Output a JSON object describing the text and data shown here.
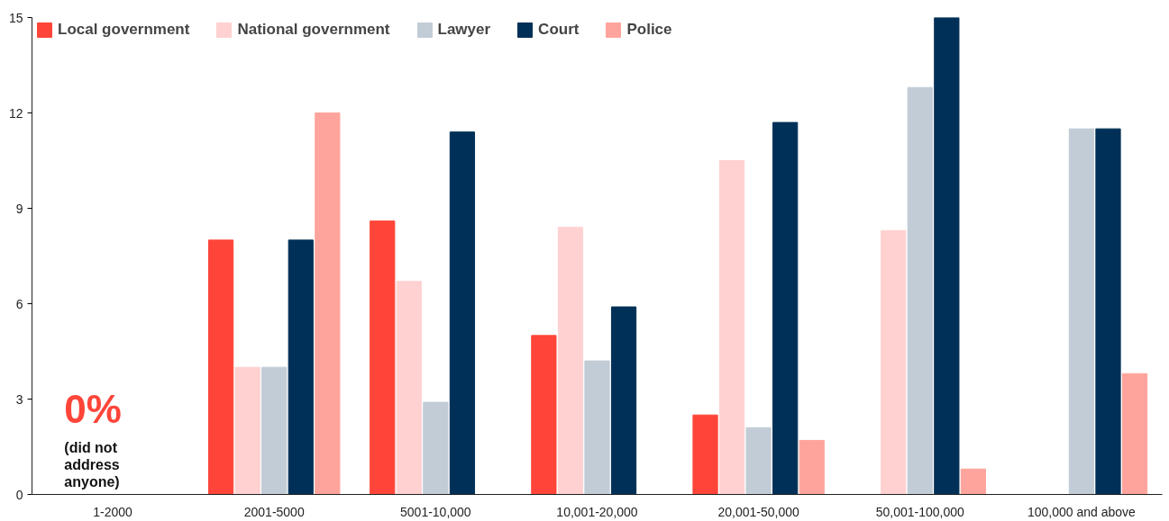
{
  "chart_data": {
    "type": "bar",
    "categories": [
      "1-2000",
      "2001-5000",
      "5001-10,000",
      "10,001-20,000",
      "20,001-50,000",
      "50,001-100,000",
      "100,000 and above"
    ],
    "series": [
      {
        "name": "Local government",
        "color": "#ff4539",
        "values": [
          0,
          8,
          8.6,
          5,
          2.5,
          0,
          0
        ]
      },
      {
        "name": "National government",
        "color": "#ffd1d1",
        "values": [
          0,
          4,
          6.7,
          8.4,
          10.5,
          8.3,
          0
        ]
      },
      {
        "name": "Lawyer",
        "color": "#c1ccd6",
        "values": [
          0,
          4,
          2.9,
          4.2,
          2.1,
          12.8,
          11.5
        ]
      },
      {
        "name": "Court",
        "color": "#003057",
        "values": [
          0,
          8,
          11.4,
          5.9,
          11.7,
          15,
          11.5
        ]
      },
      {
        "name": "Police",
        "color": "#ffa49c",
        "values": [
          0,
          12,
          0,
          0,
          1.7,
          0.8,
          3.8
        ]
      }
    ],
    "ylim": [
      0,
      15
    ],
    "yticks": [
      0,
      3,
      6,
      9,
      12,
      15
    ],
    "grid": false,
    "legend": "top left",
    "annotations": [
      {
        "text": "0%",
        "x": "1-2000",
        "y": 0
      },
      {
        "text": "(did not address anyone)",
        "x": "1-2000",
        "y": 0
      }
    ]
  }
}
